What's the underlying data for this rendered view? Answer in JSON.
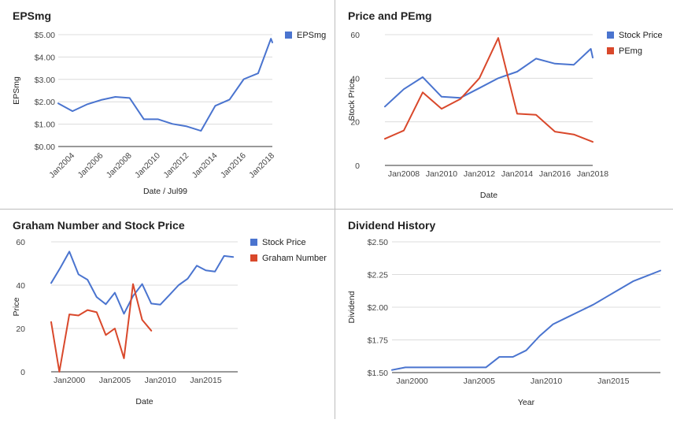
{
  "colors": {
    "blue": "#4a74cf",
    "red": "#d9482b",
    "grid": "#dcdcdc",
    "axis": "#333333",
    "divider": "#bdbdbd"
  },
  "chart_data": [
    {
      "id": "epsmg",
      "type": "line",
      "title": "EPSmg",
      "xlabel": "Date / Jul99",
      "ylabel": "EPSmg",
      "xlim": [
        2003,
        2018
      ],
      "ylim": [
        0,
        5
      ],
      "x_ticks": [
        2004,
        2006,
        2008,
        2010,
        2012,
        2014,
        2016,
        2018
      ],
      "x_tick_labels": [
        "Jan2004",
        "Jan2006",
        "Jan2008",
        "Jan2010",
        "Jan2012",
        "Jan2014",
        "Jan2016",
        "Jan2018"
      ],
      "y_ticks": [
        0,
        1,
        2,
        3,
        4,
        5
      ],
      "y_tick_labels": [
        "$0.00",
        "$1.00",
        "$2.00",
        "$3.00",
        "$4.00",
        "$5.00"
      ],
      "grid": true,
      "legend_position": "top-right",
      "series": [
        {
          "name": "EPSmg",
          "color": "#4a74cf",
          "x": [
            2003.0,
            2004.0,
            2005.0,
            2006.0,
            2007.0,
            2008.0,
            2009.0,
            2010.0,
            2011.0,
            2012.0,
            2013.0,
            2014.0,
            2015.0,
            2016.0,
            2017.0,
            2017.9,
            2018.0
          ],
          "y": [
            1.93,
            1.58,
            1.88,
            2.08,
            2.22,
            2.17,
            1.22,
            1.22,
            1.01,
            0.9,
            0.7,
            1.82,
            2.1,
            3.01,
            3.27,
            4.82,
            4.65
          ]
        }
      ]
    },
    {
      "id": "price-pemg",
      "type": "line",
      "title": "Price and PEmg",
      "xlabel": "Date",
      "ylabel": "Stock Price",
      "xlim": [
        2007,
        2018
      ],
      "ylim": [
        0,
        60
      ],
      "x_ticks": [
        2008,
        2010,
        2012,
        2014,
        2016,
        2018
      ],
      "x_tick_labels": [
        "Jan2008",
        "Jan2010",
        "Jan2012",
        "Jan2014",
        "Jan2016",
        "Jan2018"
      ],
      "y_ticks": [
        0,
        20,
        40,
        60
      ],
      "y_tick_labels": [
        "0",
        "20",
        "40",
        "60"
      ],
      "grid": true,
      "legend_position": "top-right",
      "series": [
        {
          "name": "Stock Price",
          "color": "#4a74cf",
          "x": [
            2007.0,
            2008.0,
            2009.0,
            2010.0,
            2011.0,
            2012.0,
            2013.0,
            2014.0,
            2015.0,
            2016.0,
            2017.0,
            2017.9,
            2018.0
          ],
          "y": [
            27.0,
            35.0,
            40.5,
            31.5,
            31.0,
            35.5,
            40.0,
            43.0,
            49.0,
            46.7,
            46.2,
            53.5,
            49.5
          ]
        },
        {
          "name": "PEmg",
          "color": "#d9482b",
          "x": [
            2007.0,
            2008.0,
            2009.0,
            2010.0,
            2011.0,
            2012.0,
            2013.0,
            2014.0,
            2015.0,
            2016.0,
            2017.0,
            2018.0
          ],
          "y": [
            12.2,
            16.0,
            33.5,
            26.0,
            30.5,
            40.0,
            58.5,
            23.7,
            23.2,
            15.5,
            14.2,
            10.8
          ]
        }
      ]
    },
    {
      "id": "graham",
      "type": "line",
      "title": "Graham Number and Stock Price",
      "xlabel": "Date",
      "ylabel": "Price",
      "xlim": [
        1998,
        2018.5
      ],
      "ylim": [
        0,
        60
      ],
      "x_ticks": [
        2000,
        2005,
        2010,
        2015
      ],
      "x_tick_labels": [
        "Jan2000",
        "Jan2005",
        "Jan2010",
        "Jan2015"
      ],
      "y_ticks": [
        0,
        20,
        40,
        60
      ],
      "y_tick_labels": [
        "0",
        "20",
        "40",
        "60"
      ],
      "grid": true,
      "legend_position": "top-right",
      "series": [
        {
          "name": "Stock Price",
          "color": "#4a74cf",
          "x": [
            1998.0,
            1999.0,
            2000.0,
            2001.0,
            2002.0,
            2003.0,
            2004.0,
            2005.0,
            2006.0,
            2007.0,
            2008.0,
            2009.0,
            2010.0,
            2011.0,
            2012.0,
            2013.0,
            2014.0,
            2015.0,
            2016.0,
            2017.0,
            2018.0
          ],
          "y": [
            41.0,
            48.0,
            55.5,
            45.0,
            42.5,
            34.5,
            31.2,
            36.5,
            26.8,
            35.0,
            40.5,
            31.5,
            31.0,
            35.5,
            40.0,
            43.0,
            49.0,
            46.8,
            46.3,
            53.5,
            53.0
          ]
        },
        {
          "name": "Graham Number",
          "color": "#d9482b",
          "x": [
            1998.0,
            1998.9,
            2000.0,
            2001.0,
            2002.0,
            2003.0,
            2004.0,
            2005.0,
            2006.0,
            2007.0,
            2008.0,
            2009.0
          ],
          "y": [
            23.0,
            0.0,
            26.5,
            26.0,
            28.5,
            27.5,
            17.0,
            20.0,
            6.2,
            40.5,
            24.0,
            19.0
          ]
        }
      ]
    },
    {
      "id": "dividend",
      "type": "line",
      "title": "Dividend History",
      "xlabel": "Year",
      "ylabel": "Dividend",
      "xlim": [
        1998.5,
        2018.5
      ],
      "ylim": [
        1.5,
        2.5
      ],
      "x_ticks": [
        2000,
        2005,
        2010,
        2015
      ],
      "x_tick_labels": [
        "Jan2000",
        "Jan2005",
        "Jan2010",
        "Jan2015"
      ],
      "y_ticks": [
        1.5,
        1.75,
        2.0,
        2.25,
        2.5
      ],
      "y_tick_labels": [
        "$1.50",
        "$1.75",
        "$2.00",
        "$2.25",
        "$2.50"
      ],
      "grid": true,
      "legend_position": "none",
      "series": [
        {
          "name": "",
          "color": "#4a74cf",
          "x": [
            1998.5,
            1999.5,
            2000.5,
            2001.5,
            2002.5,
            2003.5,
            2004.5,
            2005.5,
            2006.5,
            2007.5,
            2008.5,
            2009.5,
            2010.5,
            2011.5,
            2012.5,
            2013.5,
            2014.5,
            2015.5,
            2016.5,
            2017.5,
            2018.5
          ],
          "y": [
            1.52,
            1.54,
            1.54,
            1.54,
            1.54,
            1.54,
            1.54,
            1.54,
            1.62,
            1.62,
            1.67,
            1.78,
            1.87,
            1.92,
            1.97,
            2.02,
            2.08,
            2.14,
            2.2,
            2.24,
            2.28
          ]
        }
      ]
    }
  ]
}
